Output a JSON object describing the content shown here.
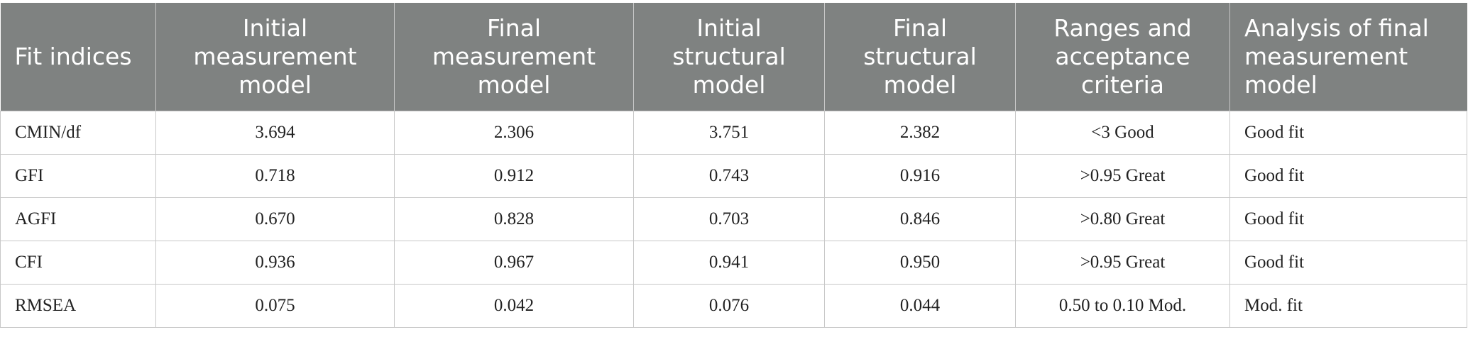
{
  "table": {
    "header": [
      "Fit indices",
      "Initial measurement model",
      "Final measurement model",
      "Initial structural model",
      "Final structural model",
      "Ranges and acceptance criteria",
      "Analysis of final measurement model"
    ],
    "rows": [
      [
        "CMIN/df",
        "3.694",
        "2.306",
        "3.751",
        "2.382",
        "<3 Good",
        "Good fit"
      ],
      [
        "GFI",
        "0.718",
        "0.912",
        "0.743",
        "0.916",
        ">0.95 Great",
        "Good fit"
      ],
      [
        "AGFI",
        "0.670",
        "0.828",
        "0.703",
        "0.846",
        ">0.80 Great",
        "Good fit"
      ],
      [
        "CFI",
        "0.936",
        "0.967",
        "0.941",
        "0.950",
        ">0.95 Great",
        "Good fit"
      ],
      [
        "RMSEA",
        "0.075",
        "0.042",
        "0.076",
        "0.044",
        "0.50 to 0.10 Mod.",
        "Mod. fit"
      ]
    ]
  }
}
